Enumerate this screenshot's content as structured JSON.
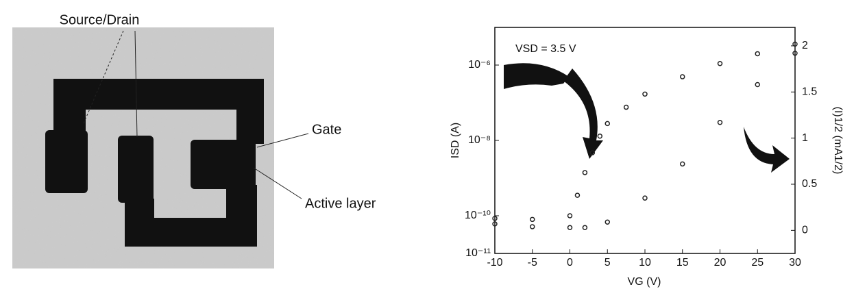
{
  "micrograph_labels": [
    "Source/Drain",
    "Gate",
    "Active layer"
  ],
  "chart_data": {
    "type": "scatter",
    "x_label": "VG (V)",
    "y_label": "ISD (A)",
    "y2_label": "(I)1/2 (mA1/2)",
    "annotation": "VSD = 3.5 V",
    "xlim": [
      -10,
      30
    ],
    "xticks": [
      -10,
      -5,
      0,
      5,
      10,
      15,
      20,
      25,
      30
    ],
    "ylim": [
      1e-11,
      1e-05
    ],
    "ylog": true,
    "yticks": [
      {
        "value": 1e-06,
        "label": "10⁻⁶"
      },
      {
        "value": 1e-08,
        "label": "10⁻⁸"
      },
      {
        "value": 1e-10,
        "label": "10⁻¹⁰"
      },
      {
        "value": 1e-11,
        "label": "10⁻¹¹"
      }
    ],
    "y2lim": [
      -0.25,
      2.2
    ],
    "y2ticks": [
      0,
      0.5,
      1,
      1.5,
      2
    ],
    "series": [
      {
        "color": "#222222",
        "x": [
          -10,
          -5,
          0,
          1,
          2,
          3,
          4,
          5,
          7.5,
          10,
          15,
          20,
          25,
          30
        ],
        "values": [
          8.5e-11,
          8e-11,
          1e-10,
          3.5e-10,
          1.4e-09,
          4.7e-09,
          1.3e-08,
          2.8e-08,
          7.6e-08,
          1.7e-07,
          4.9e-07,
          1.1e-06,
          2e-06,
          3.6e-06
        ]
      },
      {
        "color": "#222222",
        "axis": "y2",
        "x": [
          -10,
          -5,
          0,
          2,
          5,
          10,
          15,
          20,
          25,
          30
        ],
        "values": [
          0.07,
          0.04,
          0.03,
          0.03,
          0.09,
          0.35,
          0.72,
          1.17,
          1.58,
          1.92
        ]
      }
    ]
  }
}
